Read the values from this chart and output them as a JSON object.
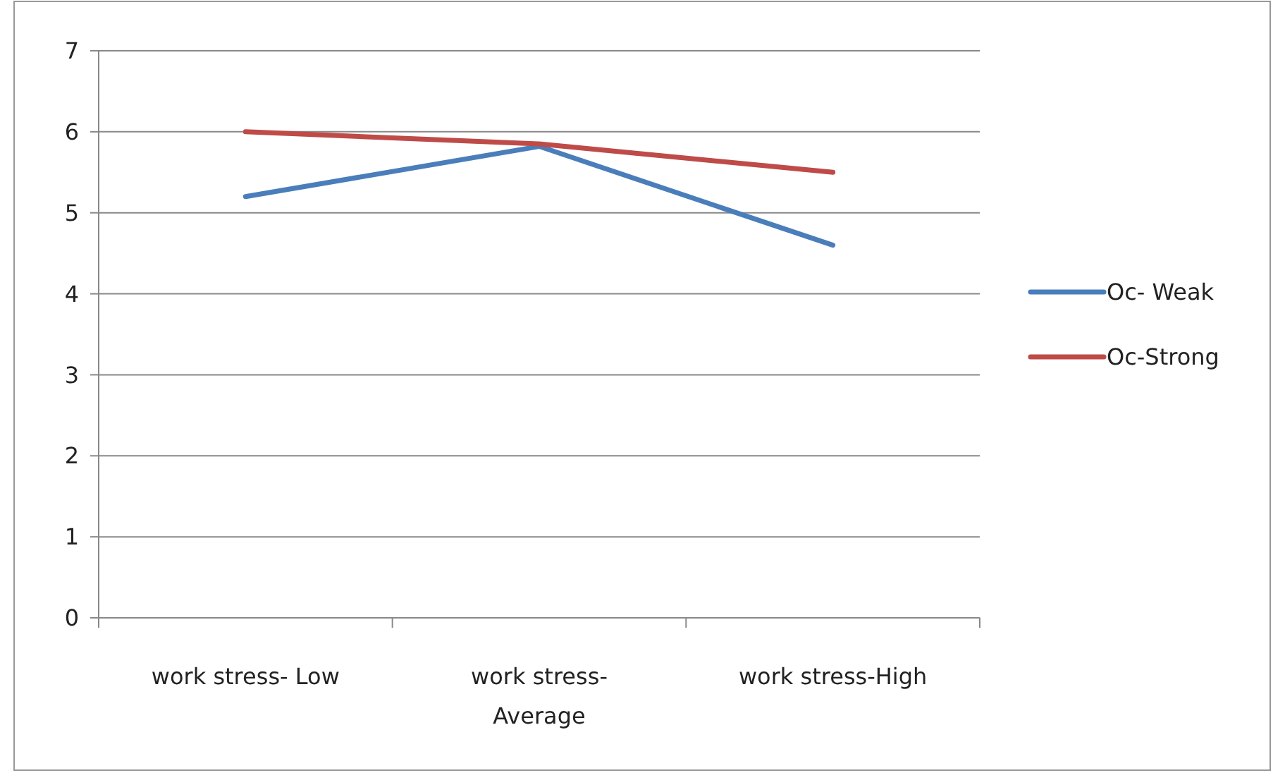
{
  "chart_data": {
    "type": "line",
    "categories": [
      "work stress- Low",
      "work stress-\nAverage",
      "work stress-High"
    ],
    "series": [
      {
        "name": "Oc- Weak",
        "color": "#4a7ebb",
        "values": [
          5.2,
          5.82,
          4.6
        ]
      },
      {
        "name": "Oc-Strong",
        "color": "#be4b48",
        "values": [
          6.0,
          5.85,
          5.5
        ]
      }
    ],
    "ylim": [
      0,
      7
    ],
    "yticks": [
      0,
      1,
      2,
      3,
      4,
      5,
      6,
      7
    ],
    "grid": "y",
    "legend": "right",
    "marker": "none",
    "line_style": "solid"
  }
}
